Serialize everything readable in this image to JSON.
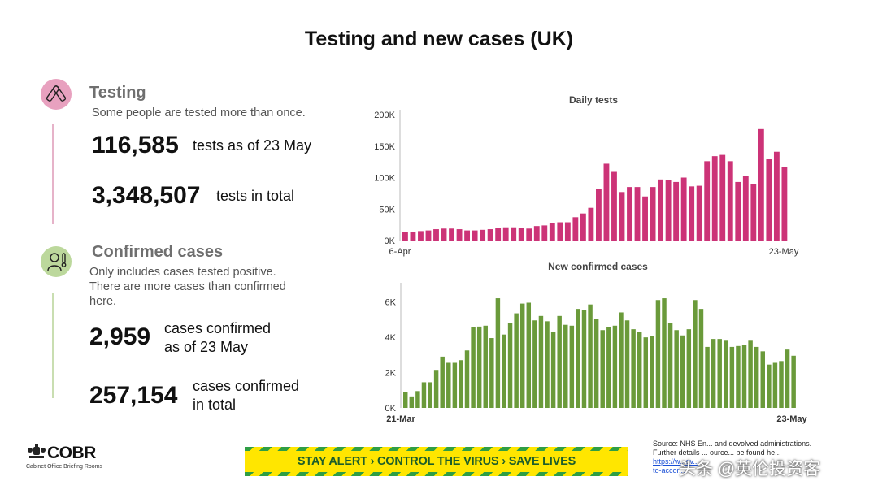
{
  "title": "Testing and new cases (UK)",
  "testing": {
    "heading": "Testing",
    "sub": "Some people are tested more than once.",
    "daily_value": "116,585",
    "daily_label": "tests as of 23 May",
    "total_value": "3,348,507",
    "total_label": "tests in total",
    "icon": "test-tube-icon",
    "color": "#cc3377"
  },
  "cases": {
    "heading": "Confirmed cases",
    "sub_lines": [
      "Only includes cases tested positive.",
      "There are more cases than confirmed",
      "here."
    ],
    "daily_value": "2,959",
    "daily_label_lines": [
      "cases confirmed",
      "as of 23 May"
    ],
    "total_value": "257,154",
    "total_label_lines": [
      "cases confirmed",
      "in total"
    ],
    "icon": "person-thermometer-icon",
    "color": "#6a9a3a"
  },
  "chart_data": [
    {
      "type": "bar",
      "title": "Daily tests",
      "color": "#cc3377",
      "x_start_label": "6-Apr",
      "x_end_label": "23-May",
      "yticks": [
        "0K",
        "50K",
        "100K",
        "150K",
        "200K"
      ],
      "ylim": [
        0,
        200000
      ],
      "values": [
        14000,
        14000,
        15000,
        16000,
        18000,
        19000,
        19000,
        18000,
        16000,
        16000,
        17000,
        18000,
        20000,
        21000,
        21000,
        20000,
        19000,
        23000,
        24000,
        28000,
        29000,
        29000,
        37000,
        43000,
        52000,
        82000,
        122000,
        109000,
        77000,
        85000,
        85000,
        70000,
        85000,
        97000,
        96000,
        93000,
        100000,
        86000,
        87000,
        126000,
        134000,
        136000,
        126000,
        93000,
        102000,
        90000,
        177000,
        129000,
        141000,
        117000
      ]
    },
    {
      "type": "bar",
      "title": "New confirmed cases",
      "color": "#6a9a3a",
      "x_start_label": "21-Mar",
      "x_end_label": "23-May",
      "yticks": [
        "0K",
        "2K",
        "4K",
        "6K"
      ],
      "ylim": [
        0,
        6800
      ],
      "values": [
        900,
        650,
        950,
        1450,
        1450,
        2150,
        2900,
        2550,
        2550,
        2700,
        3250,
        4550,
        4600,
        4650,
        3950,
        6200,
        4150,
        4800,
        5350,
        5900,
        5950,
        4950,
        5200,
        4900,
        4300,
        5200,
        4700,
        4650,
        5600,
        5550,
        5850,
        5050,
        4400,
        4550,
        4650,
        5400,
        4950,
        4450,
        4300,
        3990,
        4050,
        6100,
        6200,
        4800,
        4400,
        4100,
        4450,
        6100,
        5600,
        3450,
        3900,
        3900,
        3800,
        3450,
        3500,
        3550,
        3800,
        3450,
        3200,
        2450,
        2550,
        2650,
        3300,
        2950
      ]
    }
  ],
  "footer": {
    "logo_text": "COBR",
    "logo_sub": "Cabinet Office Briefing Rooms",
    "banner": "STAY ALERT › CONTROL THE VIRUS › SAVE LIVES",
    "source_line1": "Source: NHS En... and devolved administrations.",
    "source_line2": "Further details ... ource... be found he...",
    "source_link1": "https://w...ov...",
    "source_link2": "to-accor...",
    "watermark": "头条 @英伦投资客"
  }
}
